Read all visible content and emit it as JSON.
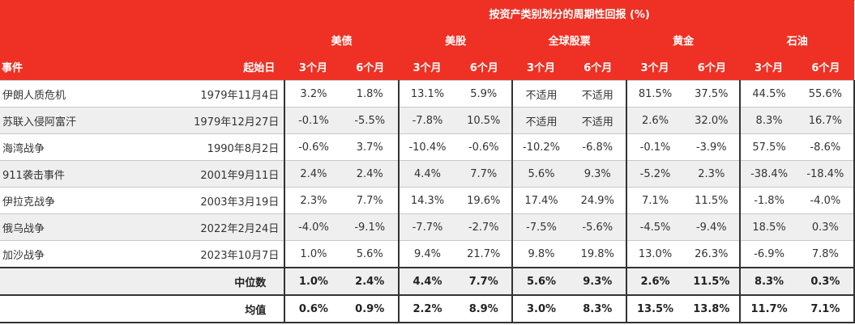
{
  "table": {
    "title": "按资产类别划分的周期性回报 (%)",
    "header": {
      "event_label": "事件",
      "date_label": "起始日",
      "assets": [
        {
          "name": "美债",
          "periods": [
            "3个月",
            "6个月"
          ]
        },
        {
          "name": "美股",
          "periods": [
            "3个月",
            "6个月"
          ]
        },
        {
          "name": "全球股票",
          "periods": [
            "3个月",
            "6个月"
          ]
        },
        {
          "name": "黄金",
          "periods": [
            "3个月",
            "6个月"
          ]
        },
        {
          "name": "石油",
          "periods": [
            "3个月",
            "6个月"
          ]
        }
      ]
    },
    "rows": [
      {
        "event": "伊朗人质危机",
        "date": "1979年11月4日",
        "values": [
          "3.2%",
          "1.8%",
          "13.1%",
          "5.9%",
          "不适用",
          "不适用",
          "81.5%",
          "37.5%",
          "44.5%",
          "55.6%"
        ]
      },
      {
        "event": "苏联入侵阿富汗",
        "date": "1979年12月27日",
        "values": [
          "-0.1%",
          "-5.5%",
          "-7.8%",
          "10.5%",
          "不适用",
          "不适用",
          "2.6%",
          "32.0%",
          "8.3%",
          "16.7%"
        ]
      },
      {
        "event": "海湾战争",
        "date": "1990年8月2日",
        "values": [
          "-0.6%",
          "3.7%",
          "-10.4%",
          "-0.6%",
          "-10.2%",
          "-6.8%",
          "-0.1%",
          "-3.9%",
          "57.5%",
          "-8.6%"
        ]
      },
      {
        "event": "911袭击事件",
        "date": "2001年9月11日",
        "values": [
          "2.4%",
          "2.4%",
          "4.4%",
          "7.7%",
          "5.6%",
          "9.3%",
          "-5.2%",
          "2.3%",
          "-38.4%",
          "-18.4%"
        ]
      },
      {
        "event": "伊拉克战争",
        "date": "2003年3月19日",
        "values": [
          "2.3%",
          "7.7%",
          "14.3%",
          "19.6%",
          "17.4%",
          "24.9%",
          "7.1%",
          "11.5%",
          "-1.8%",
          "-4.0%"
        ]
      },
      {
        "event": "俄乌战争",
        "date": "2022年2月24日",
        "values": [
          "-4.0%",
          "-9.1%",
          "-7.7%",
          "-2.7%",
          "-7.5%",
          "-5.6%",
          "-4.5%",
          "-9.4%",
          "18.5%",
          "0.3%"
        ]
      },
      {
        "event": "加沙战争",
        "date": "2023年10月7日",
        "values": [
          "1.0%",
          "5.6%",
          "9.4%",
          "21.7%",
          "9.8%",
          "19.8%",
          "13.0%",
          "26.3%",
          "-6.9%",
          "7.8%"
        ]
      }
    ],
    "summary": [
      {
        "label": "中位数",
        "values": [
          "1.0%",
          "2.4%",
          "4.4%",
          "7.7%",
          "5.6%",
          "9.3%",
          "2.6%",
          "11.5%",
          "8.3%",
          "0.3%"
        ]
      },
      {
        "label": "均值",
        "values": [
          "0.6%",
          "0.9%",
          "2.2%",
          "8.9%",
          "3.0%",
          "8.3%",
          "13.5%",
          "13.8%",
          "11.7%",
          "7.1%"
        ]
      }
    ]
  },
  "colors": {
    "header_bg": "#ee3124",
    "header_text": "#ffffff",
    "row_alt_bg": "#efefef",
    "border_dark": "#333333"
  }
}
